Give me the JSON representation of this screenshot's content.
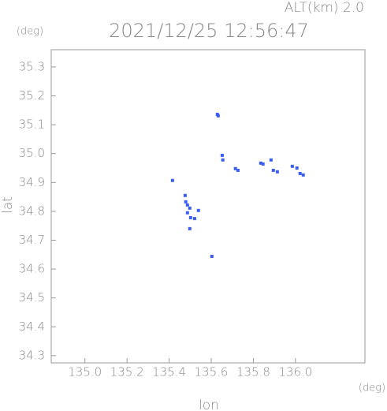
{
  "chart_data": {
    "type": "scatter",
    "title": "2021/12/25 12:56:47",
    "subtitle": "ALT(km) 2.0",
    "x_label": "lon",
    "y_label": "lat",
    "x_unit": "(deg)",
    "y_unit": "(deg)",
    "color": "#3a5ef0",
    "xlim": [
      134.84,
      136.33
    ],
    "ylim": [
      34.275,
      35.36
    ],
    "xticks": [
      {
        "value": 135,
        "label": "135.0"
      },
      135.2,
      135.4,
      135.6,
      135.8,
      {
        "value": 136,
        "label": "136.0"
      }
    ],
    "yticks": [
      34.3,
      34.4,
      34.5,
      34.6,
      34.7,
      34.8,
      34.9,
      {
        "value": 35,
        "label": "35.0"
      },
      35.1,
      35.2,
      35.3
    ],
    "x": [
      135.629,
      135.633,
      135.652,
      135.655,
      135.715,
      135.727,
      135.835,
      135.846,
      135.884,
      135.895,
      135.914,
      135.985,
      136.007,
      136.022,
      136.037,
      135.416,
      135.476,
      135.479,
      135.487,
      135.498,
      135.487,
      135.502,
      135.521,
      135.539,
      135.498,
      135.603
    ],
    "values": [
      35.136,
      35.131,
      34.994,
      34.978,
      34.948,
      34.942,
      34.967,
      34.964,
      34.978,
      34.942,
      34.937,
      34.956,
      34.95,
      34.931,
      34.926,
      34.907,
      34.855,
      34.833,
      34.822,
      34.811,
      34.795,
      34.778,
      34.775,
      34.803,
      34.74,
      34.644
    ]
  }
}
